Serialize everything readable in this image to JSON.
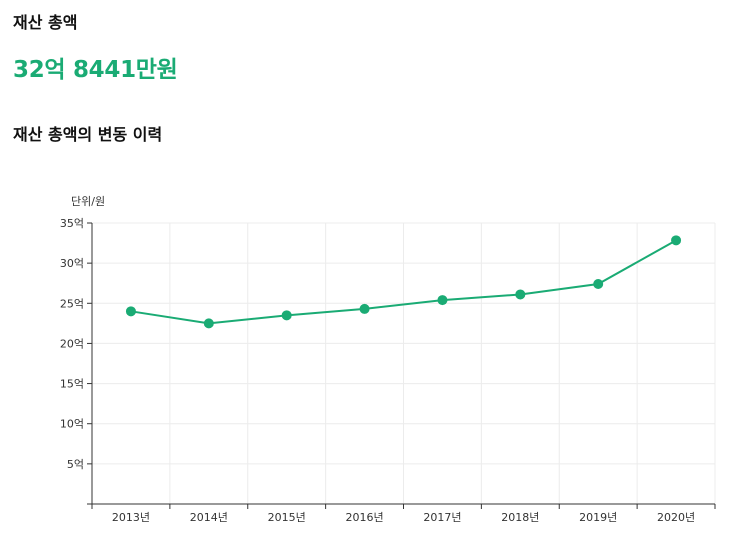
{
  "summary": {
    "label": "재산 총액",
    "amount": "32억 8441만원"
  },
  "history": {
    "title": "재산 총액의 변동 이력"
  },
  "colors": {
    "accent": "#1aab74",
    "grid": "#ececec",
    "axis": "#333333"
  },
  "chart_data": {
    "type": "line",
    "unit_label": "단위/원",
    "categories": [
      "2013년",
      "2014년",
      "2015년",
      "2016년",
      "2017년",
      "2018년",
      "2019년",
      "2020년"
    ],
    "series": [
      {
        "values": [
          24.0,
          22.5,
          23.5,
          24.3,
          25.4,
          26.1,
          27.4,
          32.84
        ]
      }
    ],
    "y_ticks": [
      {
        "value": 5,
        "label": "5억"
      },
      {
        "value": 10,
        "label": "10억"
      },
      {
        "value": 15,
        "label": "15억"
      },
      {
        "value": 20,
        "label": "20억"
      },
      {
        "value": 25,
        "label": "25억"
      },
      {
        "value": 30,
        "label": "30억"
      },
      {
        "value": 35,
        "label": "35억"
      }
    ],
    "ylim": [
      0,
      35
    ],
    "grid": true,
    "legend": "none"
  }
}
